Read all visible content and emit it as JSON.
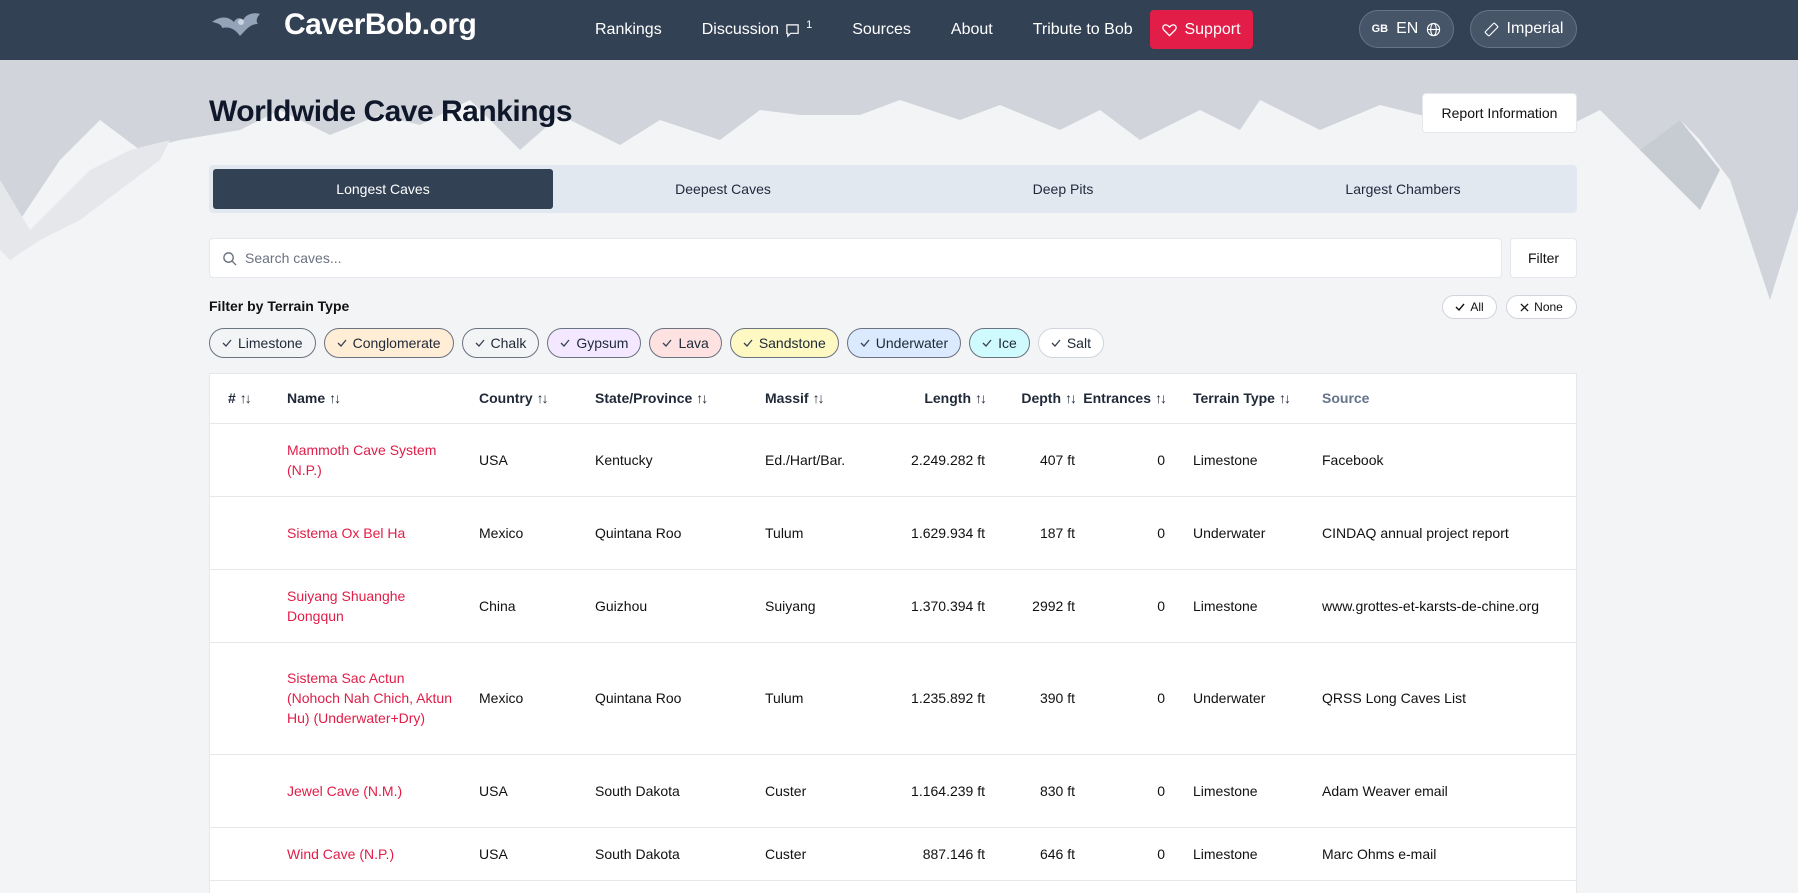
{
  "brand": {
    "name": "CaverBob.org"
  },
  "nav": {
    "items": [
      {
        "label": "Rankings"
      },
      {
        "label": "Discussion",
        "count": "1"
      },
      {
        "label": "Sources"
      },
      {
        "label": "About"
      },
      {
        "label": "Tribute to Bob"
      }
    ],
    "support_label": "Support",
    "lang_code": "GB",
    "lang_label": "EN",
    "units_label": "Imperial"
  },
  "page": {
    "title": "Worldwide Cave Rankings",
    "report_label": "Report Information"
  },
  "tabs": [
    {
      "label": "Longest Caves",
      "active": true
    },
    {
      "label": "Deepest Caves",
      "active": false
    },
    {
      "label": "Deep Pits",
      "active": false
    },
    {
      "label": "Largest Chambers",
      "active": false
    }
  ],
  "search": {
    "placeholder": "Search caves...",
    "filter_label": "Filter"
  },
  "terrain": {
    "label": "Filter by Terrain Type",
    "all_label": "All",
    "none_label": "None",
    "chips": [
      {
        "label": "Limestone",
        "bg": "#f3f4f6",
        "border": "#6b7280"
      },
      {
        "label": "Conglomerate",
        "bg": "#ffedd5",
        "border": "#6b7280"
      },
      {
        "label": "Chalk",
        "bg": "#f3f4f6",
        "border": "#6b7280"
      },
      {
        "label": "Gypsum",
        "bg": "#f3e8ff",
        "border": "#6b7280"
      },
      {
        "label": "Lava",
        "bg": "#fee2e2",
        "border": "#6b7280"
      },
      {
        "label": "Sandstone",
        "bg": "#fef9c3",
        "border": "#6b7280"
      },
      {
        "label": "Underwater",
        "bg": "#dbeafe",
        "border": "#6b7280"
      },
      {
        "label": "Ice",
        "bg": "#cffafe",
        "border": "#6b7280"
      },
      {
        "label": "Salt",
        "bg": "#ffffff",
        "border": "#d1d5db"
      }
    ]
  },
  "table": {
    "headers": {
      "rank": "#",
      "name": "Name",
      "country": "Country",
      "state": "State/Province",
      "massif": "Massif",
      "length": "Length",
      "depth": "Depth",
      "entrances": "Entrances",
      "terrain": "Terrain Type",
      "source": "Source"
    },
    "rows": [
      {
        "name": "Mammoth Cave System (N.P.)",
        "country": "USA",
        "state": "Kentucky",
        "massif": "Ed./Hart/Bar.",
        "length": "2.249.282 ft",
        "depth": "407 ft",
        "entrances": "0",
        "terrain": "Limestone",
        "source": "Facebook"
      },
      {
        "name": "Sistema Ox Bel Ha",
        "country": "Mexico",
        "state": "Quintana Roo",
        "massif": "Tulum",
        "length": "1.629.934 ft",
        "depth": "187 ft",
        "entrances": "0",
        "terrain": "Underwater",
        "source": "CINDAQ annual project report"
      },
      {
        "name": "Suiyang Shuanghe Dongqun",
        "country": "China",
        "state": "Guizhou",
        "massif": "Suiyang",
        "length": "1.370.394 ft",
        "depth": "2992 ft",
        "entrances": "0",
        "terrain": "Limestone",
        "source": "www.grottes-et-karsts-de-chine.org"
      },
      {
        "name": "Sistema Sac Actun (Nohoch Nah Chich, Aktun Hu) (Underwater+Dry)",
        "country": "Mexico",
        "state": "Quintana Roo",
        "massif": "Tulum",
        "length": "1.235.892 ft",
        "depth": "390 ft",
        "entrances": "0",
        "terrain": "Underwater",
        "source": "QRSS Long Caves List"
      },
      {
        "name": "Jewel Cave (N.M.)",
        "country": "USA",
        "state": "South Dakota",
        "massif": "Custer",
        "length": "1.164.239 ft",
        "depth": "830 ft",
        "entrances": "0",
        "terrain": "Limestone",
        "source": "Adam Weaver email"
      },
      {
        "name": "Wind Cave (N.P.)",
        "country": "USA",
        "state": "South Dakota",
        "massif": "Custer",
        "length": "887.146 ft",
        "depth": "646 ft",
        "entrances": "0",
        "terrain": "Limestone",
        "source": "Marc Ohms e-mail"
      }
    ]
  },
  "colors": {
    "header": "#334155",
    "accent": "#e11d48"
  }
}
